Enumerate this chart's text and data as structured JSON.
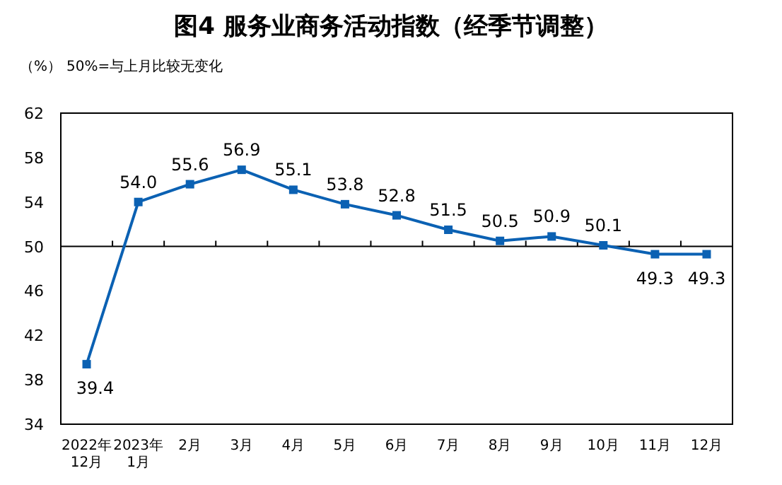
{
  "chart_data": {
    "type": "line",
    "title": "图4  服务业商务活动指数（经季节调整）",
    "ylabel": "（%）",
    "annotations": [
      "50%=与上月比较无变化"
    ],
    "categories": [
      "2022年\n12月",
      "2023年\n1月",
      "2月",
      "3月",
      "4月",
      "5月",
      "6月",
      "7月",
      "8月",
      "9月",
      "10月",
      "11月",
      "12月"
    ],
    "series": [
      {
        "color": "#0b61b3",
        "values": [
          39.4,
          54.0,
          55.6,
          56.9,
          55.1,
          53.8,
          52.8,
          51.5,
          50.5,
          50.9,
          50.1,
          49.3,
          49.3
        ],
        "value_labels": [
          "39.4",
          "54.0",
          "55.6",
          "56.9",
          "55.1",
          "53.8",
          "52.8",
          "51.5",
          "50.5",
          "50.9",
          "50.1",
          "49.3",
          "49.3"
        ]
      }
    ],
    "ylim": [
      34,
      62
    ],
    "yticks": [
      34,
      38,
      42,
      46,
      50,
      54,
      58,
      62
    ],
    "ref_lines": [
      {
        "axis": "y",
        "value": 50,
        "color": "#000000"
      }
    ],
    "marker": "square",
    "grid": false
  }
}
